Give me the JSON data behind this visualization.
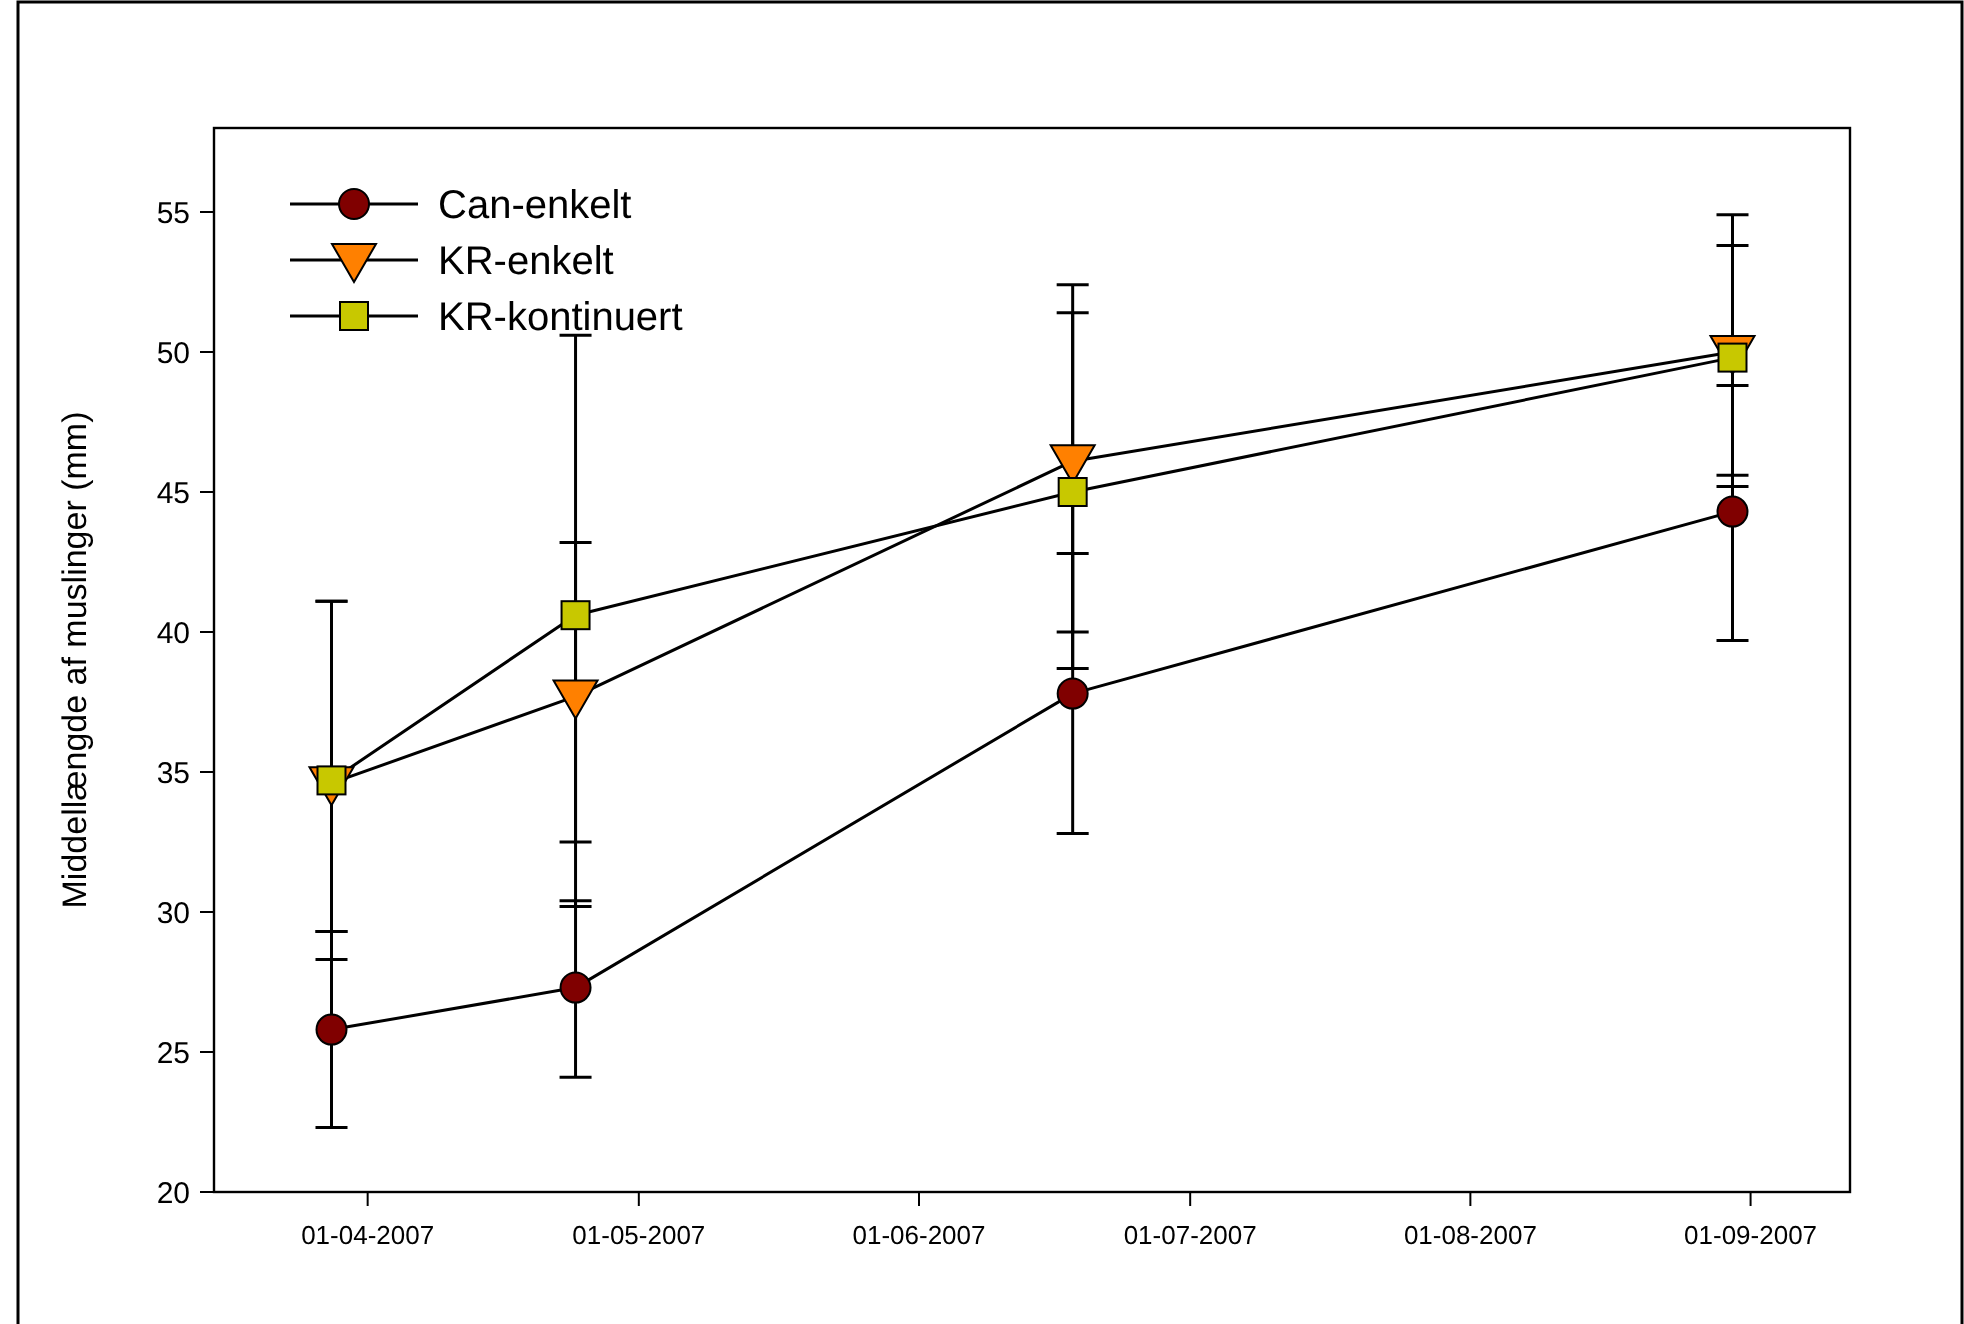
{
  "chart_data": {
    "type": "line",
    "ylabel": "Middellængde af muslinger (mm)",
    "x": [
      "2007-03-28",
      "2007-04-24",
      "2007-06-18",
      "2007-08-30"
    ],
    "xlim": [
      "2007-03-15",
      "2007-09-12"
    ],
    "xticks": [
      {
        "value": "2007-04-01",
        "label": "01-04-2007"
      },
      {
        "value": "2007-05-01",
        "label": "01-05-2007"
      },
      {
        "value": "2007-06-01",
        "label": "01-06-2007"
      },
      {
        "value": "2007-07-01",
        "label": "01-07-2007"
      },
      {
        "value": "2007-08-01",
        "label": "01-08-2007"
      },
      {
        "value": "2007-09-01",
        "label": "01-09-2007"
      }
    ],
    "ylim": [
      20,
      58
    ],
    "yticks": [
      20,
      25,
      30,
      35,
      40,
      45,
      50,
      55
    ],
    "grid": false,
    "legend": "top left",
    "line_style": "solid",
    "series": [
      {
        "name": "Can-enkelt",
        "color": "#800000",
        "marker": "circle",
        "values": [
          25.8,
          27.3,
          37.8,
          44.3
        ],
        "errors": [
          [
            22.3,
            29.3
          ],
          [
            24.1,
            30.4
          ],
          [
            32.8,
            42.8
          ],
          [
            39.7,
            48.8
          ]
        ]
      },
      {
        "name": "KR-enkelt",
        "color": "#ff8000",
        "marker": "triangle",
        "values": [
          34.6,
          37.7,
          46.1,
          50.0
        ],
        "errors": [
          [
            28.3,
            41.1
          ],
          [
            32.5,
            43.2
          ],
          [
            40.0,
            52.4
          ],
          [
            45.2,
            54.9
          ]
        ]
      },
      {
        "name": "KR-kontinuert",
        "color": "#c8c800",
        "marker": "square",
        "values": [
          34.7,
          40.6,
          45.0,
          49.8
        ],
        "errors": [
          [
            29.3,
            41.1
          ],
          [
            30.2,
            50.6
          ],
          [
            38.7,
            51.4
          ],
          [
            45.6,
            53.8
          ]
        ]
      }
    ]
  }
}
